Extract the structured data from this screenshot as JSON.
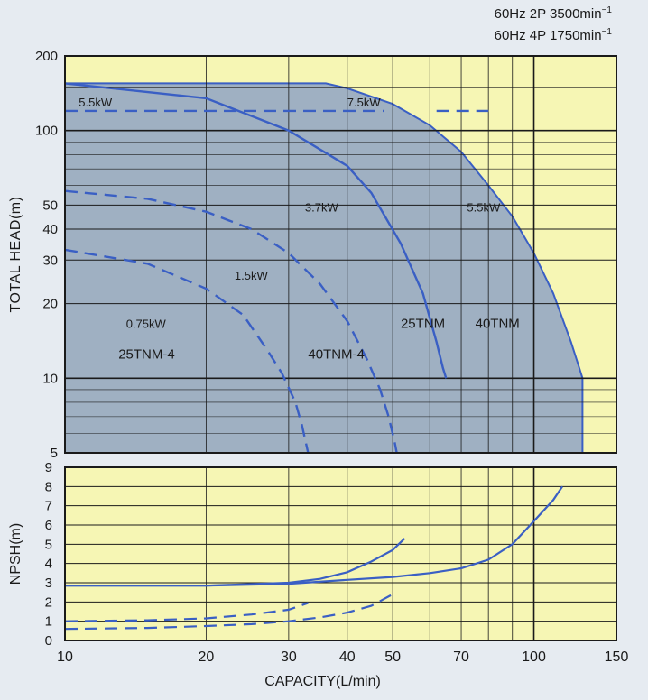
{
  "header": {
    "line1": "60Hz 2P 3500min",
    "line1_sup": "−1",
    "line2": "60Hz 4P 1750min",
    "line2_sup": "−1"
  },
  "colors": {
    "background": "#e6ebf1",
    "plot_fill": "#f6f6b4",
    "region_fill": "#8fa3c4",
    "curve": "#3a5fc4",
    "grid": "#1a1a1a"
  },
  "chart_data": [
    {
      "type": "area",
      "id": "head",
      "x_scale": "log",
      "y_scale": "log",
      "xlim": [
        10,
        150
      ],
      "ylim": [
        5,
        200
      ],
      "ylabel": "TOTAL HEAD(m)",
      "y_ticks": [
        5,
        10,
        20,
        30,
        40,
        50,
        100,
        200
      ],
      "y_minor_ticks": [
        6,
        7,
        8,
        9,
        60,
        70,
        80,
        90,
        150
      ],
      "x_grid": [
        10,
        20,
        30,
        40,
        50,
        60,
        70,
        80,
        90,
        100,
        150
      ],
      "regions": [
        {
          "name": "40TNM",
          "points": [
            [
              10,
              155
            ],
            [
              36,
              155
            ],
            [
              40,
              148
            ],
            [
              50,
              128
            ],
            [
              60,
              105
            ],
            [
              70,
              82
            ],
            [
              80,
              60
            ],
            [
              90,
              45
            ],
            [
              100,
              32
            ],
            [
              110,
              22
            ],
            [
              120,
              14
            ],
            [
              125,
              11
            ],
            [
              127,
              10
            ],
            [
              127,
              5
            ],
            [
              10,
              5
            ]
          ]
        }
      ],
      "series": [
        {
          "name": "25TNM",
          "style": "solid",
          "points": [
            [
              10,
              155
            ],
            [
              20,
              135
            ],
            [
              30,
              100
            ],
            [
              40,
              72
            ],
            [
              45,
              56
            ],
            [
              52,
              35
            ],
            [
              58,
              22
            ],
            [
              62,
              14
            ],
            [
              64,
              11
            ],
            [
              65,
              10
            ]
          ]
        },
        {
          "name": "",
          "style": "dashed",
          "points": [
            [
              10,
              120
            ],
            [
              48,
              120
            ]
          ]
        },
        {
          "name": "",
          "style": "dashed",
          "points": [
            [
              62,
              120
            ],
            [
              80,
              120
            ]
          ]
        },
        {
          "name": "40TNM-4",
          "style": "dashed",
          "points": [
            [
              10,
              57
            ],
            [
              15,
              53
            ],
            [
              20,
              47
            ],
            [
              25,
              40
            ],
            [
              30,
              32
            ],
            [
              35,
              24
            ],
            [
              40,
              17
            ],
            [
              44,
              12
            ],
            [
              47,
              9
            ],
            [
              49,
              7
            ],
            [
              50.5,
              5.5
            ],
            [
              51,
              5
            ]
          ]
        },
        {
          "name": "25TNM-4",
          "style": "dashed",
          "points": [
            [
              10,
              33
            ],
            [
              15,
              29
            ],
            [
              20,
              23
            ],
            [
              24,
              18
            ],
            [
              27,
              13
            ],
            [
              29,
              10.5
            ],
            [
              31,
              8
            ],
            [
              32,
              6.5
            ],
            [
              33,
              5
            ]
          ]
        }
      ],
      "annotations": [
        {
          "text": "5.5kW",
          "x": 10.7,
          "y": 125
        },
        {
          "text": "7.5kW",
          "x": 40,
          "y": 125
        },
        {
          "text": "3.7kW",
          "x": 32.5,
          "y": 47
        },
        {
          "text": "5.5kW",
          "x": 72,
          "y": 47
        },
        {
          "text": "1.5kW",
          "x": 23,
          "y": 25
        },
        {
          "text": "0.75kW",
          "x": 13.5,
          "y": 16
        },
        {
          "text": "25TNM",
          "x": 52,
          "y": 16
        },
        {
          "text": "40TNM",
          "x": 75,
          "y": 16
        },
        {
          "text": "25TNM-4",
          "x": 13,
          "y": 12
        },
        {
          "text": "40TNM-4",
          "x": 33,
          "y": 12
        }
      ]
    },
    {
      "type": "line",
      "id": "npsh",
      "x_scale": "log",
      "y_scale": "linear",
      "xlim": [
        10,
        150
      ],
      "ylim": [
        0,
        9
      ],
      "xlabel": "CAPACITY(L/min)",
      "ylabel": "NPSH(m)",
      "x_ticks": [
        10,
        20,
        30,
        40,
        50,
        70,
        100,
        150
      ],
      "x_grid": [
        10,
        20,
        30,
        40,
        50,
        60,
        70,
        80,
        90,
        100,
        150
      ],
      "y_ticks": [
        0,
        1,
        2,
        3,
        4,
        5,
        6,
        7,
        8,
        9
      ],
      "series": [
        {
          "name": "40TNM",
          "style": "solid",
          "points": [
            [
              10,
              2.85
            ],
            [
              20,
              2.85
            ],
            [
              30,
              2.95
            ],
            [
              40,
              3.15
            ],
            [
              50,
              3.3
            ],
            [
              60,
              3.5
            ],
            [
              70,
              3.75
            ],
            [
              80,
              4.2
            ],
            [
              90,
              5.0
            ],
            [
              100,
              6.2
            ],
            [
              110,
              7.3
            ],
            [
              115,
              8.0
            ]
          ]
        },
        {
          "name": "25TNM",
          "style": "solid",
          "points": [
            [
              10,
              2.85
            ],
            [
              20,
              2.85
            ],
            [
              30,
              3.0
            ],
            [
              35,
              3.2
            ],
            [
              40,
              3.55
            ],
            [
              45,
              4.1
            ],
            [
              50,
              4.7
            ],
            [
              53,
              5.3
            ]
          ]
        },
        {
          "name": "40TNM-4",
          "style": "dashed",
          "points": [
            [
              10,
              0.6
            ],
            [
              15,
              0.65
            ],
            [
              20,
              0.75
            ],
            [
              25,
              0.85
            ],
            [
              30,
              1.0
            ],
            [
              35,
              1.2
            ],
            [
              40,
              1.45
            ],
            [
              45,
              1.8
            ],
            [
              50,
              2.4
            ]
          ]
        },
        {
          "name": "25TNM-4",
          "style": "dashed",
          "points": [
            [
              10,
              1.0
            ],
            [
              15,
              1.05
            ],
            [
              20,
              1.15
            ],
            [
              25,
              1.35
            ],
            [
              30,
              1.6
            ],
            [
              33,
              1.95
            ]
          ]
        }
      ]
    }
  ]
}
